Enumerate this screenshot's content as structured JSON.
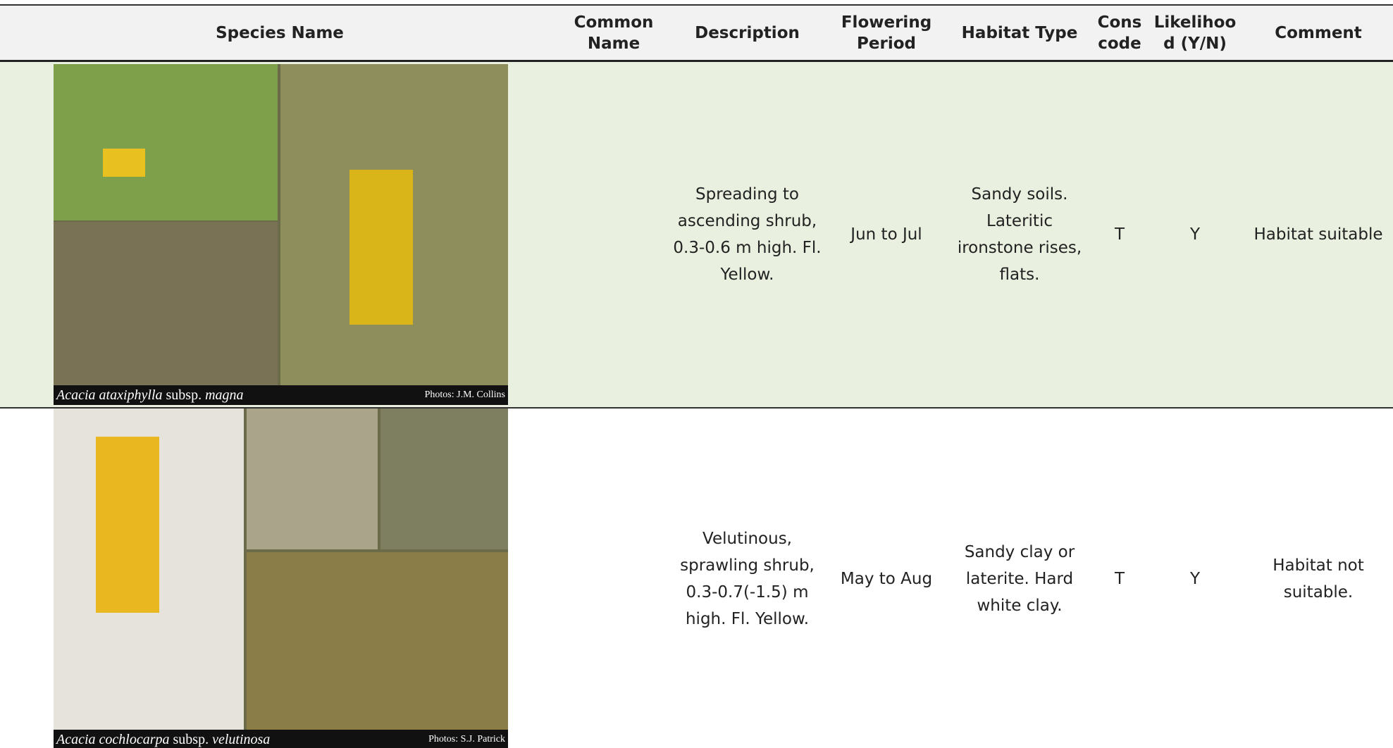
{
  "table": {
    "headers": [
      "Species Name",
      "Common Name",
      "Description",
      "Flowering Period",
      "Habitat Type",
      "Cons code",
      "Likelihood (Y/N)",
      "Comment"
    ],
    "rows": [
      {
        "photo": {
          "genus": "Acacia ataxiphylla",
          "rank": "subsp.",
          "infra": "magna",
          "credit": "Photos: J.M. Collins"
        },
        "common_name": null,
        "description": "Spreading to ascending shrub, 0.3-0.6 m high. Fl. Yellow.",
        "flowering": "Jun to Jul",
        "habitat": "Sandy soils. Lateritic ironstone rises, flats.",
        "cons_code": "T",
        "likelihood": "Y",
        "comment": "Habitat suitable"
      },
      {
        "photo": {
          "genus": "Acacia cochlocarpa",
          "rank": "subsp.",
          "infra": "velutinosa",
          "credit": "Photos: S.J. Patrick"
        },
        "common_name": null,
        "description": "Velutinous, sprawling shrub, 0.3-0.7(-1.5) m high. Fl. Yellow.",
        "flowering": "May to Aug",
        "habitat": "Sandy clay or laterite. Hard white clay.",
        "cons_code": "T",
        "likelihood": "Y",
        "comment": "Habitat not suitable."
      }
    ]
  }
}
